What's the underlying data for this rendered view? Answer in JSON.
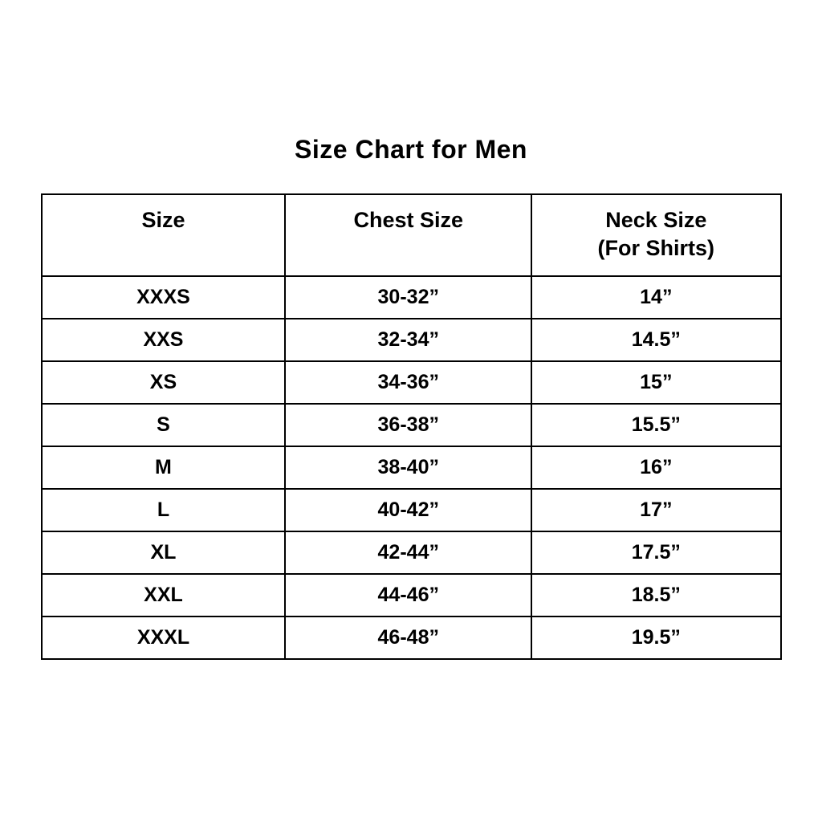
{
  "page": {
    "title": "Size Chart for Men",
    "background_color": "#ffffff",
    "text_color": "#000000",
    "border_color": "#000000"
  },
  "table": {
    "headers": {
      "size": "Size",
      "chest": "Chest Size",
      "neck_line1": "Neck Size",
      "neck_line2": "(For Shirts)"
    }
  },
  "chart_data": {
    "type": "table",
    "title": "Size Chart for Men",
    "columns": [
      "Size",
      "Chest Size",
      "Neck Size (For Shirts)"
    ],
    "rows": [
      [
        "XXXS",
        "30-32”",
        "14”"
      ],
      [
        "XXS",
        "32-34”",
        "14.5”"
      ],
      [
        "XS",
        "34-36”",
        "15”"
      ],
      [
        "S",
        "36-38”",
        "15.5”"
      ],
      [
        "M",
        "38-40”",
        "16”"
      ],
      [
        "L",
        "40-42”",
        "17”"
      ],
      [
        "XL",
        "42-44”",
        "17.5”"
      ],
      [
        "XXL",
        "44-46”",
        "18.5”"
      ],
      [
        "XXXL",
        "46-48”",
        "19.5”"
      ]
    ]
  }
}
